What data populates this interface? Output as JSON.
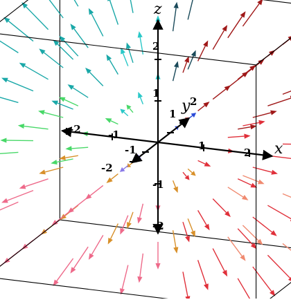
{
  "axes": {
    "x_label": "x",
    "y_label": "y",
    "z_label": "z",
    "ticks": {
      "x": [
        "-2",
        "-1",
        "1",
        "2"
      ],
      "y": [
        "-2",
        "-1",
        "1",
        "2"
      ],
      "z": [
        "-2",
        "-1",
        "1",
        "2"
      ]
    },
    "range": [
      -3,
      3
    ]
  },
  "field": {
    "description_type": "3d-vector-field",
    "grid": [
      -2.4,
      -1.2,
      0,
      1.2,
      2.4
    ],
    "colors": {
      "red": "#e0303a",
      "dark_red": "#a01818",
      "pink": "#ee6a8a",
      "salmon": "#f08a70",
      "orange": "#d8902a",
      "blue": "#2a4ad8",
      "violet": "#8a7ae8",
      "teal": "#1aa8a8",
      "cyan": "#2ac8c8",
      "green": "#48d868",
      "lime": "#78e07a",
      "dark_teal": "#1a4a5a"
    }
  },
  "box": {
    "stroke": "#000000"
  }
}
